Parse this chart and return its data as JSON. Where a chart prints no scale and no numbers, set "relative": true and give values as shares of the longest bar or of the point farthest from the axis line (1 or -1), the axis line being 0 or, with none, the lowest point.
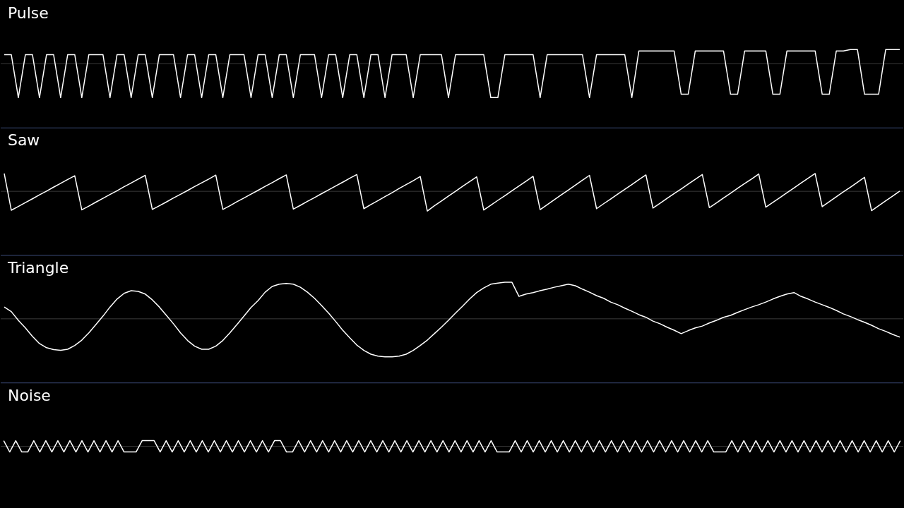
{
  "chart_data": [
    {
      "type": "line",
      "title": "Pulse",
      "relative": true,
      "color": "#ffffff",
      "categories": [
        null,
        null,
        null,
        null,
        null,
        null,
        null,
        null,
        null,
        null,
        null,
        null,
        null,
        null,
        null,
        null,
        null,
        null,
        null,
        null,
        null,
        null,
        null,
        null,
        null,
        null,
        null,
        null,
        null,
        null,
        null,
        null,
        null,
        null,
        null,
        null,
        null,
        null,
        null,
        null,
        null,
        null,
        null,
        null,
        null,
        null,
        null,
        null,
        null,
        null,
        null,
        null,
        null,
        null,
        null,
        null,
        null,
        null,
        null,
        null,
        null,
        null,
        null,
        null,
        null,
        null,
        null,
        null,
        null,
        null,
        null,
        null,
        null,
        null,
        null,
        null,
        null,
        null,
        null,
        null,
        null,
        null,
        null,
        null,
        null,
        null,
        null,
        null,
        null,
        null,
        null,
        null,
        null,
        null,
        null,
        null,
        null,
        null,
        null,
        null,
        null,
        null,
        null,
        null,
        null,
        null,
        null,
        null,
        null,
        null,
        null,
        null,
        null,
        null,
        null,
        null,
        null,
        null,
        null,
        null,
        null,
        null,
        null,
        null,
        null,
        null,
        null,
        null
      ],
      "values": [
        0.27,
        0.27,
        -1,
        0.27,
        0.27,
        -1,
        0.27,
        0.27,
        -1,
        0.27,
        0.27,
        -1,
        0.27,
        0.27,
        0.27,
        -1,
        0.27,
        0.27,
        -1,
        0.27,
        0.27,
        -1,
        0.27,
        0.27,
        0.27,
        -1,
        0.27,
        0.27,
        -1,
        0.27,
        0.27,
        -1,
        0.27,
        0.27,
        0.27,
        -1,
        0.27,
        0.27,
        -1,
        0.27,
        0.27,
        -1,
        0.27,
        0.27,
        0.27,
        -1,
        0.27,
        0.27,
        -1,
        0.27,
        0.27,
        -1,
        0.27,
        0.27,
        -1,
        0.27,
        0.27,
        0.27,
        -1,
        0.27,
        0.27,
        0.27,
        0.27,
        -1,
        0.27,
        0.27,
        0.27,
        0.27,
        0.27,
        -1,
        -1,
        0.27,
        0.27,
        0.27,
        0.27,
        0.27,
        -1,
        0.27,
        0.27,
        0.27,
        0.27,
        0.27,
        0.27,
        -1,
        0.27,
        0.27,
        0.27,
        0.27,
        0.27,
        -1,
        0.38,
        0.38,
        0.38,
        0.38,
        0.38,
        0.38,
        -0.9,
        -0.9,
        0.38,
        0.38,
        0.38,
        0.38,
        0.38,
        -0.9,
        -0.9,
        0.38,
        0.38,
        0.38,
        0.38,
        -0.9,
        -0.9,
        0.38,
        0.38,
        0.38,
        0.38,
        0.38,
        -0.9,
        -0.9,
        0.38,
        0.38,
        0.42,
        0.42,
        -0.9,
        -0.9,
        -0.9,
        0.42,
        0.42,
        0.42
      ]
    },
    {
      "type": "line",
      "title": "Saw",
      "relative": true,
      "color": "#ffffff",
      "categories": [
        null,
        null,
        null,
        null,
        null,
        null,
        null,
        null,
        null,
        null,
        null,
        null,
        null,
        null,
        null,
        null,
        null,
        null,
        null,
        null,
        null,
        null,
        null,
        null,
        null,
        null,
        null,
        null,
        null,
        null,
        null,
        null,
        null,
        null,
        null,
        null,
        null,
        null,
        null,
        null,
        null,
        null,
        null,
        null,
        null,
        null,
        null,
        null,
        null,
        null,
        null,
        null,
        null,
        null,
        null,
        null,
        null,
        null,
        null,
        null,
        null,
        null,
        null,
        null,
        null,
        null,
        null,
        null,
        null,
        null,
        null,
        null,
        null,
        null,
        null,
        null,
        null,
        null,
        null,
        null,
        null,
        null,
        null,
        null,
        null,
        null,
        null,
        null,
        null,
        null,
        null,
        null,
        null,
        null,
        null,
        null,
        null,
        null,
        null,
        null,
        null,
        null,
        null,
        null,
        null,
        null,
        null,
        null,
        null,
        null,
        null,
        null,
        null,
        null,
        null,
        null,
        null,
        null,
        null,
        null,
        null,
        null,
        null,
        null,
        null,
        null,
        null,
        null
      ],
      "values": [
        0.9,
        -0.96,
        -0.77,
        -0.57,
        -0.38,
        -0.18,
        0.01,
        0.21,
        0.4,
        0.6,
        0.79,
        -0.94,
        -0.75,
        -0.55,
        -0.36,
        -0.16,
        0.03,
        0.23,
        0.42,
        0.62,
        0.81,
        -0.92,
        -0.73,
        -0.54,
        -0.34,
        -0.15,
        0.04,
        0.24,
        0.43,
        0.62,
        0.82,
        -0.92,
        -0.73,
        -0.53,
        -0.34,
        -0.14,
        0.05,
        0.25,
        0.44,
        0.64,
        0.83,
        -0.9,
        -0.71,
        -0.51,
        -0.32,
        -0.12,
        0.07,
        0.27,
        0.46,
        0.66,
        0.85,
        -0.88,
        -0.67,
        -0.47,
        -0.27,
        -0.07,
        0.14,
        0.34,
        0.54,
        0.75,
        -1,
        -0.73,
        -0.49,
        -0.24,
        0,
        0.25,
        0.49,
        0.73,
        -0.95,
        -0.71,
        -0.46,
        -0.22,
        0.03,
        0.27,
        0.51,
        0.76,
        -0.93,
        -0.68,
        -0.43,
        -0.18,
        0.06,
        0.31,
        0.56,
        0.81,
        -0.88,
        -0.63,
        -0.39,
        -0.14,
        0.1,
        0.34,
        0.59,
        0.83,
        -0.85,
        -0.61,
        -0.36,
        -0.12,
        0.12,
        0.37,
        0.61,
        0.85,
        -0.83,
        -0.59,
        -0.34,
        -0.1,
        0.15,
        0.39,
        0.63,
        0.88,
        -0.8,
        -0.56,
        -0.32,
        -0.07,
        0.17,
        0.42,
        0.66,
        0.9,
        -0.78,
        -0.53,
        -0.28,
        -0.03,
        0.21,
        0.46,
        0.71,
        -0.98,
        -0.73,
        -0.48,
        -0.24,
        0.01
      ]
    },
    {
      "type": "line",
      "title": "Triangle",
      "relative": true,
      "color": "#ffffff",
      "categories": [
        null,
        null,
        null,
        null,
        null,
        null,
        null,
        null,
        null,
        null,
        null,
        null,
        null,
        null,
        null,
        null,
        null,
        null,
        null,
        null,
        null,
        null,
        null,
        null,
        null,
        null,
        null,
        null,
        null,
        null,
        null,
        null,
        null,
        null,
        null,
        null,
        null,
        null,
        null,
        null,
        null,
        null,
        null,
        null,
        null,
        null,
        null,
        null,
        null,
        null,
        null,
        null,
        null,
        null,
        null,
        null,
        null,
        null,
        null,
        null,
        null,
        null,
        null,
        null,
        null,
        null,
        null,
        null,
        null,
        null,
        null,
        null,
        null,
        null,
        null,
        null,
        null,
        null,
        null,
        null,
        null,
        null,
        null,
        null,
        null,
        null,
        null,
        null,
        null,
        null,
        null,
        null,
        null,
        null,
        null,
        null,
        null,
        null,
        null,
        null,
        null,
        null,
        null,
        null,
        null,
        null,
        null,
        null,
        null,
        null,
        null,
        null,
        null,
        null,
        null,
        null,
        null,
        null,
        null,
        null,
        null,
        null,
        null,
        null,
        null,
        null,
        null,
        null
      ],
      "values": [
        0.31,
        0.19,
        -0.04,
        -0.24,
        -0.46,
        -0.65,
        -0.76,
        -0.81,
        -0.83,
        -0.8,
        -0.7,
        -0.56,
        -0.37,
        -0.15,
        0.07,
        0.31,
        0.52,
        0.67,
        0.74,
        0.72,
        0.65,
        0.5,
        0.31,
        0.09,
        -0.13,
        -0.37,
        -0.57,
        -0.72,
        -0.8,
        -0.8,
        -0.72,
        -0.57,
        -0.37,
        -0.15,
        0.07,
        0.3,
        0.48,
        0.7,
        0.85,
        0.91,
        0.93,
        0.91,
        0.83,
        0.7,
        0.54,
        0.35,
        0.15,
        -0.07,
        -0.3,
        -0.5,
        -0.69,
        -0.83,
        -0.93,
        -0.98,
        -1,
        -1,
        -0.98,
        -0.93,
        -0.83,
        -0.7,
        -0.56,
        -0.39,
        -0.22,
        -0.04,
        0.15,
        0.33,
        0.52,
        0.69,
        0.81,
        0.91,
        0.94,
        0.96,
        0.96,
        0.59,
        0.65,
        0.69,
        0.74,
        0.78,
        0.83,
        0.87,
        0.91,
        0.87,
        0.78,
        0.7,
        0.61,
        0.54,
        0.44,
        0.37,
        0.28,
        0.2,
        0.11,
        0.04,
        -0.06,
        -0.13,
        -0.22,
        -0.3,
        -0.39,
        -0.31,
        -0.24,
        -0.19,
        -0.11,
        -0.04,
        0.04,
        0.09,
        0.17,
        0.24,
        0.31,
        0.37,
        0.44,
        0.52,
        0.59,
        0.65,
        0.69,
        0.59,
        0.52,
        0.44,
        0.37,
        0.3,
        0.22,
        0.13,
        0.06,
        -0.02,
        -0.09,
        -0.17,
        -0.26,
        -0.33,
        -0.41,
        -0.48
      ]
    },
    {
      "type": "line",
      "title": "Noise",
      "relative": true,
      "color": "#ffffff",
      "categories": [
        null,
        null,
        null,
        null,
        null,
        null,
        null,
        null,
        null,
        null,
        null,
        null,
        null,
        null,
        null,
        null,
        null,
        null,
        null,
        null,
        null,
        null,
        null,
        null,
        null,
        null,
        null,
        null,
        null,
        null,
        null,
        null,
        null,
        null,
        null,
        null,
        null,
        null,
        null,
        null,
        null,
        null,
        null,
        null,
        null,
        null,
        null,
        null,
        null,
        null,
        null,
        null,
        null,
        null,
        null,
        null,
        null,
        null,
        null,
        null,
        null,
        null,
        null,
        null,
        null,
        null,
        null,
        null,
        null,
        null,
        null,
        null,
        null,
        null,
        null,
        null,
        null,
        null,
        null,
        null,
        null,
        null,
        null,
        null,
        null,
        null,
        null,
        null,
        null,
        null,
        null,
        null,
        null,
        null,
        null,
        null,
        null,
        null,
        null,
        null,
        null,
        null,
        null,
        null,
        null,
        null,
        null,
        null,
        null,
        null,
        null,
        null,
        null,
        null,
        null,
        null,
        null,
        null,
        null,
        null,
        null,
        null,
        null,
        null,
        null,
        null,
        null,
        null,
        null,
        null,
        null,
        null,
        null,
        null,
        null,
        null,
        null,
        null,
        null,
        null,
        null,
        null,
        null,
        null,
        null,
        null,
        null,
        null,
        null,
        null
      ],
      "values": [
        1,
        -1,
        1,
        -1,
        -1,
        1,
        -1,
        1,
        -1,
        1,
        -1,
        1,
        -1,
        1,
        -1,
        1,
        -1,
        1,
        -1,
        1,
        -1,
        -1,
        -1,
        1,
        1,
        1,
        -1,
        1,
        -1,
        1,
        -1,
        1,
        -1,
        1,
        -1,
        1,
        -1,
        1,
        -1,
        1,
        -1,
        1,
        -1,
        1,
        -1,
        1,
        1,
        -1,
        -1,
        1,
        -1,
        1,
        -1,
        1,
        -1,
        1,
        -1,
        1,
        -1,
        1,
        -1,
        1,
        -1,
        1,
        -1,
        1,
        -1,
        1,
        -1,
        1,
        -1,
        1,
        -1,
        1,
        -1,
        1,
        -1,
        1,
        -1,
        1,
        -1,
        1,
        -1,
        -1,
        -1,
        1,
        -1,
        1,
        -1,
        1,
        -1,
        1,
        -1,
        1,
        -1,
        1,
        -1,
        1,
        -1,
        1,
        -1,
        1,
        -1,
        1,
        -1,
        1,
        -1,
        1,
        -1,
        1,
        -1,
        1,
        -1,
        1,
        -1,
        1,
        -1,
        1,
        -1,
        -1,
        -1,
        1,
        -1,
        1,
        -1,
        1,
        -1,
        1,
        -1,
        1,
        -1,
        1,
        -1,
        1,
        -1,
        1,
        -1,
        1,
        -1,
        1,
        -1,
        1,
        -1,
        1,
        -1,
        1,
        -1,
        1,
        -1,
        1
      ]
    }
  ]
}
